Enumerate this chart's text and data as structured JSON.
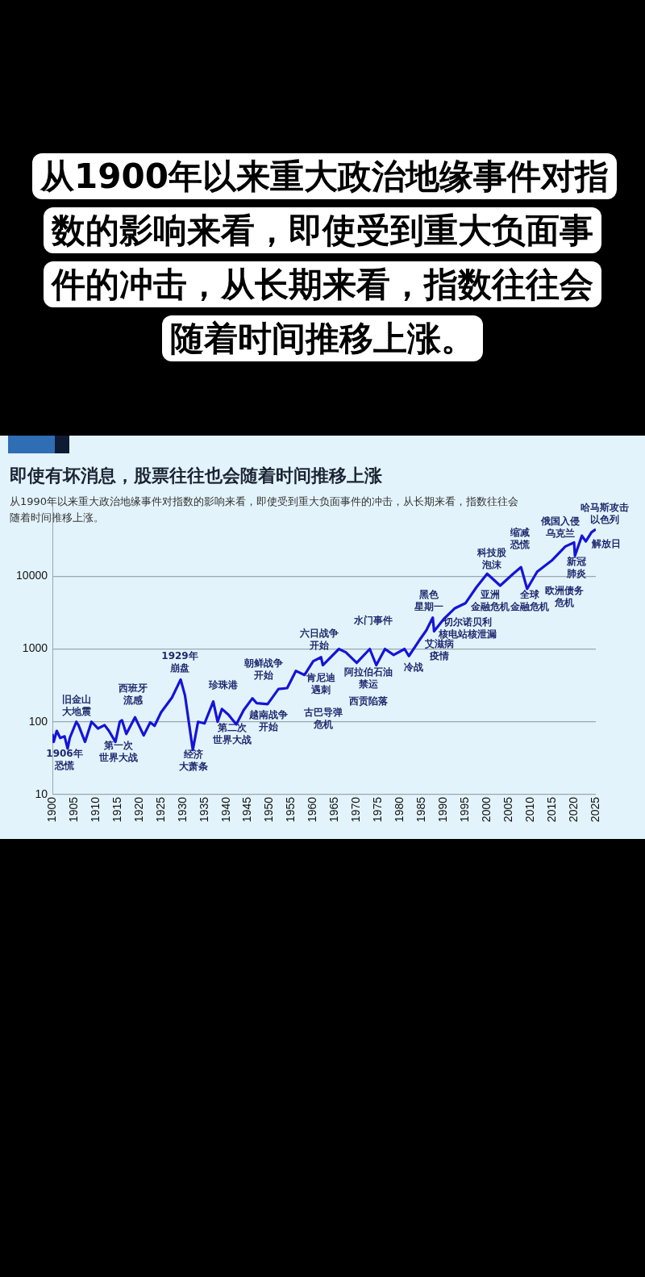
{
  "chart_data": {
    "type": "line",
    "title": "即使有坏消息，股票往往也会随着时间推移上涨",
    "subtitle": "从1990年以来重大政治地缘事件对指数的影响来看，即使受到重大负面事件的冲击，从长期来看，指数往往会随着时间推移上涨。",
    "x": [
      1900,
      1900.3,
      1901,
      1901.8,
      1902.8,
      1903.5,
      1904,
      1905.5,
      1906,
      1907.5,
      1909,
      1910.5,
      1912,
      1913,
      1914.5,
      1915.5,
      1916,
      1917,
      1919,
      1921,
      1922.5,
      1923.5,
      1925,
      1927.5,
      1929.5,
      1930.5,
      1932.3,
      1933.5,
      1935,
      1937,
      1938,
      1939,
      1940.5,
      1942.3,
      1944,
      1946,
      1947,
      1949.5,
      1952,
      1954,
      1956,
      1958,
      1960,
      1961.8,
      1962.2,
      1965.9,
      1967.5,
      1970,
      1973,
      1974.5,
      1976.5,
      1978.5,
      1981,
      1982,
      1984.3,
      1986,
      1987.5,
      1987.8,
      1990,
      1992.5,
      1995,
      1997.5,
      2000,
      2003,
      2006,
      2007.8,
      2009.2,
      2011.5,
      2015,
      2018,
      2020,
      2020.2,
      2021.8,
      2022.7,
      2024,
      2025
    ],
    "series": [
      {
        "color": "#1414d9",
        "values": [
          68,
          53,
          75,
          60,
          63,
          43,
          60,
          100,
          90,
          53,
          100,
          81,
          90,
          75,
          53,
          100,
          105,
          68,
          115,
          65,
          98,
          88,
          135,
          215,
          381,
          230,
          41,
          100,
          95,
          190,
          100,
          150,
          125,
          92,
          145,
          210,
          180,
          175,
          282,
          290,
          500,
          440,
          680,
          770,
          600,
          1000,
          900,
          645,
          1000,
          600,
          1000,
          830,
          1000,
          800,
          1290,
          1800,
          2700,
          1750,
          2570,
          3600,
          4250,
          7000,
          10800,
          7400,
          10800,
          13300,
          6700,
          11500,
          16700,
          25600,
          29000,
          19000,
          36000,
          30000,
          40000,
          44000
        ]
      }
    ],
    "xlim": [
      1900,
      2025
    ],
    "xticks": [
      1900,
      1905,
      1910,
      1915,
      1920,
      1925,
      1930,
      1935,
      1940,
      1945,
      1950,
      1955,
      1960,
      1965,
      1970,
      1975,
      1980,
      1985,
      1990,
      1995,
      2000,
      2005,
      2010,
      2015,
      2020,
      2025
    ],
    "ylim": [
      10,
      100000
    ],
    "yticks": [
      10,
      100,
      1000,
      10000
    ],
    "log": "y",
    "grid": "y",
    "annotations": [
      "从1900年以来重大政治地缘事件对指数的影响来看，即使受到重大负面事件的冲击，从长期来看，指数往往会随着时间推移上涨。",
      "旧金山大地震",
      "1906年恐慌",
      "西班牙流感",
      "第一次世界大战",
      "1929年崩盘",
      "经济大萧条",
      "珍珠港",
      "第二次世界大战",
      "朝鲜战争开始",
      "越南战争开始",
      "六日战争开始",
      "肯尼迪遇刺",
      "古巴导弹危机",
      "水门事件",
      "阿拉伯石油禁运",
      "西贡陷落",
      "冷战",
      "艾滋病疫情",
      "切尔诺贝利核电站核泄漏",
      "黑色星期一",
      "亚洲金融危机",
      "全球金融危机",
      "欧洲债务危机",
      "科技股泡沫",
      "缩减恐慌",
      "俄国入侵乌克兰",
      "哈马斯攻击以色列",
      "新冠肺炎",
      "解放日"
    ]
  }
}
